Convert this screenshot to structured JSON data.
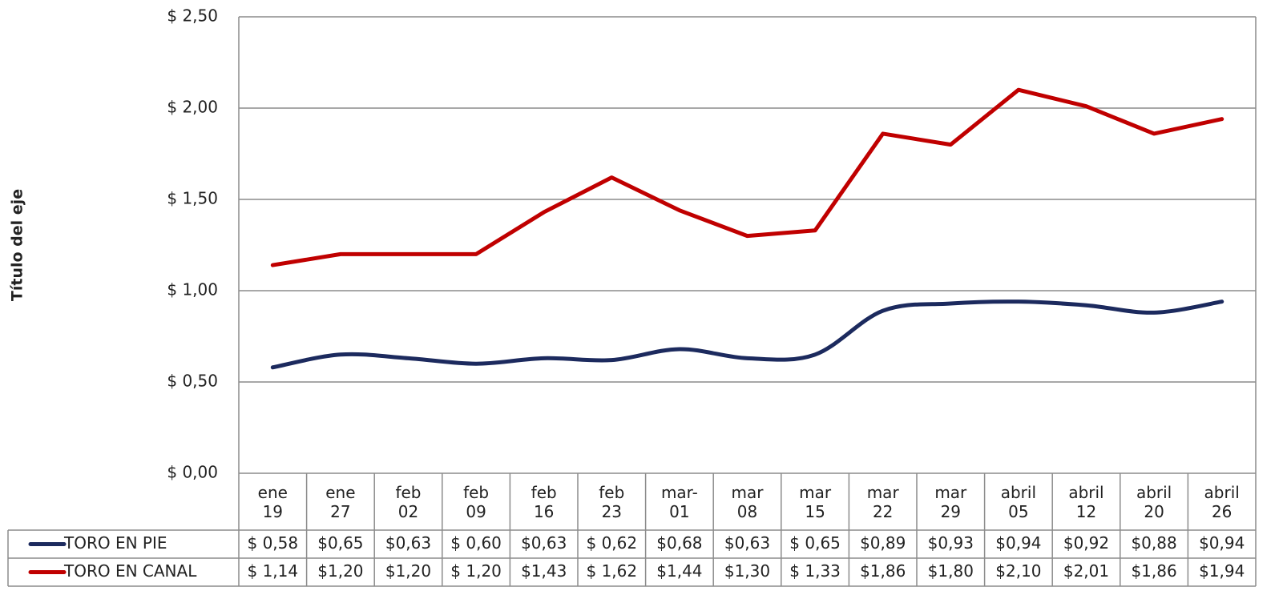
{
  "chart_data": {
    "type": "line",
    "y_axis_title": "Título del eje",
    "categories": [
      "ene 19",
      "ene 27",
      "feb 02",
      "feb 09",
      "feb 16",
      "feb 23",
      "mar-01",
      "mar 08",
      "mar 15",
      "mar 22",
      "mar 29",
      "abril 05",
      "abril 12",
      "abril 20",
      "abril 26"
    ],
    "series": [
      {
        "name": "TORO EN PIE",
        "color": "#1c2a5e",
        "smooth": true,
        "values": [
          0.58,
          0.65,
          0.63,
          0.6,
          0.63,
          0.62,
          0.68,
          0.63,
          0.65,
          0.89,
          0.93,
          0.94,
          0.92,
          0.88,
          0.94
        ],
        "value_labels": [
          "$ 0,58",
          "$0,65",
          "$0,63",
          "$ 0,60",
          "$0,63",
          "$ 0,62",
          "$0,68",
          "$0,63",
          "$ 0,65",
          "$0,89",
          "$0,93",
          "$0,94",
          "$0,92",
          "$0,88",
          "$0,94"
        ]
      },
      {
        "name": "TORO EN CANAL",
        "color": "#c00000",
        "smooth": false,
        "values": [
          1.14,
          1.2,
          1.2,
          1.2,
          1.43,
          1.62,
          1.44,
          1.3,
          1.33,
          1.86,
          1.8,
          2.1,
          2.01,
          1.86,
          1.94
        ],
        "value_labels": [
          "$ 1,14",
          "$1,20",
          "$1,20",
          "$ 1,20",
          "$1,43",
          "$ 1,62",
          "$1,44",
          "$1,30",
          "$ 1,33",
          "$1,86",
          "$1,80",
          "$2,10",
          "$2,01",
          "$1,86",
          "$1,94"
        ]
      }
    ],
    "ylim": [
      0,
      2.5
    ],
    "yticks": [
      {
        "value": 0,
        "label": "$ 0,00"
      },
      {
        "value": 0.5,
        "label": "$ 0,50"
      },
      {
        "value": 1,
        "label": "$ 1,00"
      },
      {
        "value": 1.5,
        "label": "$ 1,50"
      },
      {
        "value": 2,
        "label": "$ 2,00"
      },
      {
        "value": 2.5,
        "label": "$ 2,50"
      }
    ],
    "grid": true
  }
}
